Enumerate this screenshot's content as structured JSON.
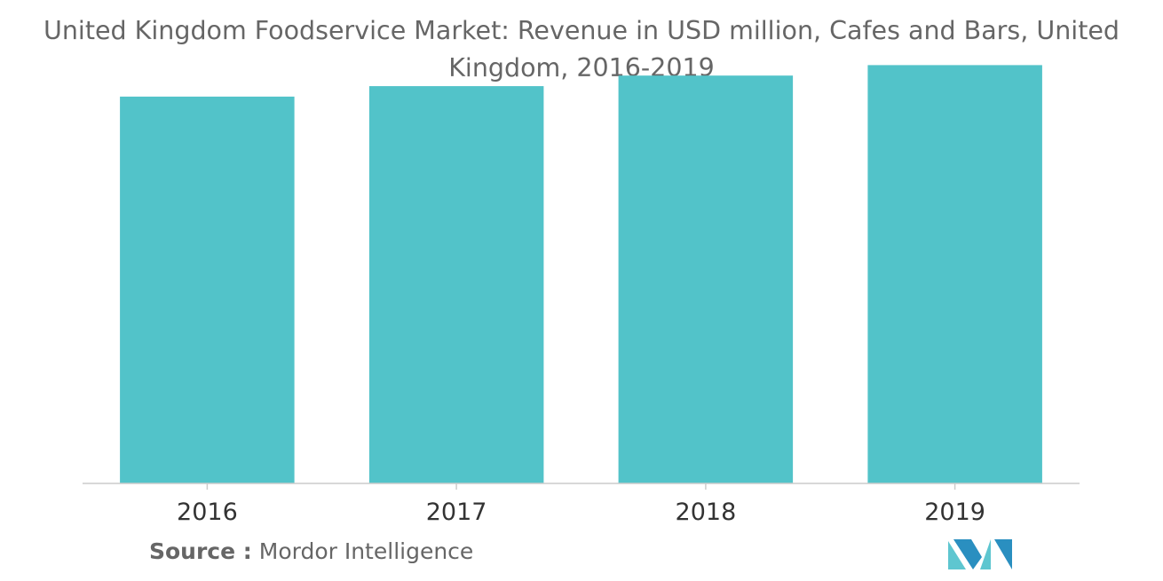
{
  "chart_data": {
    "type": "bar",
    "title": "United Kingdom Foodservice Market: Revenue in USD million, Cafes and Bars, United Kingdom, 2016-2019",
    "categories": [
      "2016",
      "2017",
      "2018",
      "2019"
    ],
    "values": [
      92,
      94.5,
      97,
      99.5
    ],
    "ylim": [
      0,
      100
    ],
    "xlabel": "",
    "ylabel": "",
    "grid": false,
    "legend": "none",
    "bar_color": "#52c3c9",
    "axis_color": "#cccccc"
  },
  "source": {
    "label": "Source :",
    "value": "Mordor Intelligence"
  },
  "logo": {
    "icon": "mordor-intelligence-logo",
    "colors": [
      "#2a8fc0",
      "#5ec6d0"
    ]
  }
}
